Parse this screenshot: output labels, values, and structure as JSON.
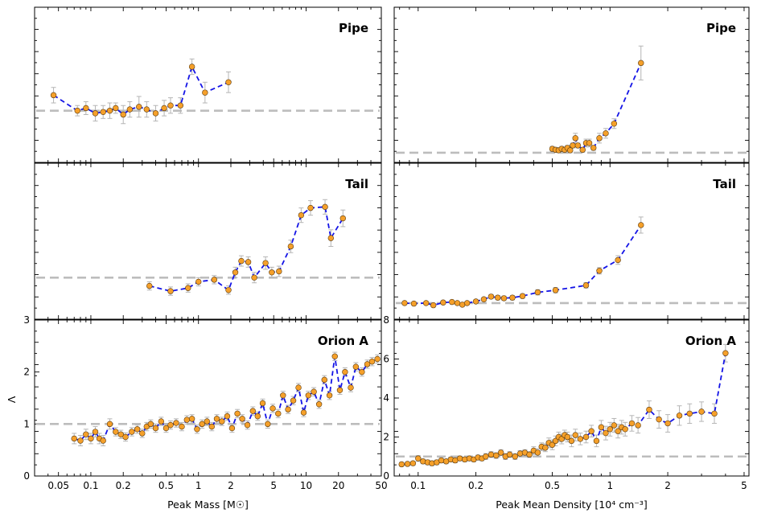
{
  "chart_data": {
    "type": "line",
    "y_label": "Λ",
    "reference_value": 1,
    "columns": [
      {
        "xlabel": "Peak Mass [M☉]",
        "x_scale": "log",
        "xlim": [
          0.03,
          50
        ],
        "x_ticks": [
          0.05,
          0.1,
          0.2,
          0.5,
          1,
          2,
          5,
          10,
          20,
          50
        ],
        "x_tick_labels": [
          "0.05",
          "0.1",
          "0.2",
          "0.5",
          "1",
          "2",
          "5",
          "10",
          "20",
          "50"
        ],
        "bottom_ylim": [
          0,
          3
        ],
        "bottom_y_ticks": [
          0,
          1,
          2,
          3
        ],
        "bottom_y_tick_labels": [
          "0",
          "1",
          "2",
          "3"
        ]
      },
      {
        "xlabel": "Peak Mean Density [10⁴ cm⁻³]",
        "x_scale": "log",
        "xlim": [
          0.075,
          5.3
        ],
        "x_ticks": [
          0.1,
          0.2,
          0.5,
          1,
          2,
          5
        ],
        "x_tick_labels": [
          "0.1",
          "0.2",
          "0.5",
          "1",
          "2",
          "5"
        ],
        "bottom_ylim": [
          0,
          8
        ],
        "bottom_y_ticks": [
          0,
          2,
          4,
          6,
          8
        ],
        "bottom_y_tick_labels": [
          "0",
          "2",
          "4",
          "6",
          "8"
        ]
      }
    ],
    "panels": [
      {
        "title": "Pipe",
        "row": 0,
        "col": 0,
        "ylim": [
          0.8,
          1.4
        ],
        "x": [
          0.045,
          0.075,
          0.09,
          0.11,
          0.13,
          0.15,
          0.17,
          0.2,
          0.23,
          0.28,
          0.33,
          0.4,
          0.48,
          0.55,
          0.68,
          0.87,
          1.15,
          1.9
        ],
        "y": [
          1.06,
          1.0,
          1.01,
          0.99,
          0.995,
          1.0,
          1.01,
          0.985,
          1.005,
          1.015,
          1.005,
          0.99,
          1.01,
          1.02,
          1.02,
          1.17,
          1.07,
          1.11
        ],
        "err": [
          0.03,
          0.02,
          0.025,
          0.03,
          0.025,
          0.03,
          0.02,
          0.035,
          0.03,
          0.04,
          0.03,
          0.03,
          0.03,
          0.03,
          0.03,
          0.03,
          0.04,
          0.04
        ]
      },
      {
        "title": "Pipe",
        "row": 0,
        "col": 1,
        "ylim": [
          0.8,
          4.0
        ],
        "x": [
          0.5,
          0.52,
          0.54,
          0.56,
          0.58,
          0.6,
          0.62,
          0.64,
          0.66,
          0.68,
          0.72,
          0.75,
          0.78,
          0.82,
          0.88,
          0.95,
          1.05,
          1.45
        ],
        "y": [
          1.08,
          1.06,
          1.05,
          1.08,
          1.06,
          1.1,
          1.05,
          1.15,
          1.3,
          1.15,
          1.06,
          1.2,
          1.2,
          1.1,
          1.3,
          1.4,
          1.6,
          2.85
        ],
        "err": [
          0.05,
          0.05,
          0.05,
          0.05,
          0.05,
          0.05,
          0.05,
          0.05,
          0.1,
          0.05,
          0.05,
          0.08,
          0.08,
          0.05,
          0.1,
          0.1,
          0.1,
          0.35
        ]
      },
      {
        "title": "Tail",
        "row": 1,
        "col": 0,
        "ylim": [
          0.6,
          2.1
        ],
        "x": [
          0.35,
          0.55,
          0.8,
          1.0,
          1.4,
          1.9,
          2.2,
          2.5,
          2.9,
          3.3,
          4.2,
          4.8,
          5.6,
          7.2,
          9.0,
          11,
          15,
          17,
          22
        ],
        "y": [
          0.92,
          0.87,
          0.9,
          0.96,
          0.98,
          0.88,
          1.05,
          1.16,
          1.15,
          1.0,
          1.14,
          1.05,
          1.06,
          1.3,
          1.6,
          1.67,
          1.68,
          1.38,
          1.57
        ],
        "err": [
          0.04,
          0.04,
          0.04,
          0.04,
          0.04,
          0.04,
          0.05,
          0.05,
          0.05,
          0.05,
          0.06,
          0.05,
          0.05,
          0.06,
          0.07,
          0.07,
          0.07,
          0.08,
          0.08
        ]
      },
      {
        "title": "Tail",
        "row": 1,
        "col": 1,
        "ylim": [
          0.7,
          3.6
        ],
        "x": [
          0.085,
          0.095,
          0.11,
          0.12,
          0.135,
          0.15,
          0.16,
          0.17,
          0.18,
          0.2,
          0.22,
          0.24,
          0.26,
          0.28,
          0.31,
          0.35,
          0.42,
          0.52,
          0.75,
          0.88,
          1.1,
          1.45
        ],
        "y": [
          1.0,
          0.99,
          1.0,
          0.96,
          1.01,
          1.02,
          1.0,
          0.97,
          1.0,
          1.03,
          1.07,
          1.12,
          1.1,
          1.09,
          1.1,
          1.13,
          1.2,
          1.24,
          1.33,
          1.6,
          1.8,
          2.45
        ],
        "err": [
          0.03,
          0.03,
          0.03,
          0.03,
          0.03,
          0.03,
          0.03,
          0.03,
          0.03,
          0.03,
          0.03,
          0.04,
          0.04,
          0.04,
          0.04,
          0.04,
          0.05,
          0.05,
          0.05,
          0.06,
          0.08,
          0.15
        ]
      },
      {
        "title": "Orion A",
        "row": 2,
        "col": 0,
        "ylim": [
          0,
          3
        ],
        "x": [
          0.07,
          0.08,
          0.09,
          0.1,
          0.11,
          0.12,
          0.13,
          0.15,
          0.17,
          0.19,
          0.21,
          0.24,
          0.27,
          0.3,
          0.33,
          0.36,
          0.4,
          0.45,
          0.5,
          0.55,
          0.62,
          0.7,
          0.78,
          0.87,
          0.97,
          1.08,
          1.2,
          1.33,
          1.48,
          1.65,
          1.85,
          2.05,
          2.3,
          2.55,
          2.85,
          3.2,
          3.55,
          3.95,
          4.4,
          4.9,
          5.5,
          6.1,
          6.8,
          7.6,
          8.5,
          9.5,
          10.5,
          11.8,
          13.2,
          14.8,
          16.5,
          18.5,
          20.6,
          23,
          26,
          29,
          33,
          37,
          41,
          46
        ],
        "y": [
          0.72,
          0.68,
          0.8,
          0.72,
          0.85,
          0.72,
          0.68,
          1.0,
          0.85,
          0.8,
          0.75,
          0.85,
          0.9,
          0.82,
          0.95,
          1.0,
          0.92,
          1.05,
          0.92,
          0.98,
          1.02,
          0.95,
          1.08,
          1.1,
          0.9,
          1.0,
          1.05,
          0.95,
          1.1,
          1.05,
          1.15,
          0.92,
          1.2,
          1.1,
          0.98,
          1.25,
          1.15,
          1.4,
          1.0,
          1.3,
          1.2,
          1.55,
          1.28,
          1.45,
          1.7,
          1.22,
          1.55,
          1.62,
          1.38,
          1.85,
          1.55,
          2.3,
          1.65,
          2.0,
          1.7,
          2.1,
          2.0,
          2.15,
          2.2,
          2.25
        ],
        "err": [
          0.1,
          0.1,
          0.1,
          0.1,
          0.1,
          0.1,
          0.1,
          0.1,
          0.08,
          0.08,
          0.08,
          0.08,
          0.08,
          0.08,
          0.08,
          0.08,
          0.08,
          0.08,
          0.08,
          0.08,
          0.08,
          0.08,
          0.08,
          0.08,
          0.08,
          0.08,
          0.08,
          0.08,
          0.08,
          0.08,
          0.08,
          0.08,
          0.08,
          0.08,
          0.08,
          0.08,
          0.08,
          0.08,
          0.08,
          0.08,
          0.08,
          0.08,
          0.08,
          0.08,
          0.08,
          0.08,
          0.08,
          0.08,
          0.08,
          0.08,
          0.08,
          0.08,
          0.08,
          0.08,
          0.08,
          0.08,
          0.08,
          0.08,
          0.08,
          0.08
        ]
      },
      {
        "title": "Orion A",
        "row": 2,
        "col": 1,
        "ylim": [
          0,
          8
        ],
        "x": [
          0.082,
          0.088,
          0.094,
          0.1,
          0.106,
          0.112,
          0.118,
          0.125,
          0.132,
          0.14,
          0.148,
          0.156,
          0.165,
          0.175,
          0.185,
          0.195,
          0.205,
          0.215,
          0.225,
          0.24,
          0.255,
          0.27,
          0.285,
          0.3,
          0.32,
          0.34,
          0.36,
          0.38,
          0.4,
          0.42,
          0.44,
          0.46,
          0.48,
          0.5,
          0.52,
          0.54,
          0.56,
          0.58,
          0.6,
          0.63,
          0.66,
          0.7,
          0.75,
          0.8,
          0.85,
          0.9,
          0.95,
          1.0,
          1.05,
          1.1,
          1.15,
          1.2,
          1.3,
          1.4,
          1.6,
          1.8,
          2.0,
          2.3,
          2.6,
          3.0,
          3.5,
          4.0
        ],
        "y": [
          0.6,
          0.62,
          0.65,
          0.9,
          0.75,
          0.7,
          0.65,
          0.7,
          0.8,
          0.75,
          0.85,
          0.8,
          0.9,
          0.85,
          0.9,
          0.85,
          0.95,
          0.9,
          1.0,
          1.1,
          1.05,
          1.2,
          1.0,
          1.1,
          1.0,
          1.15,
          1.2,
          1.1,
          1.3,
          1.2,
          1.5,
          1.45,
          1.7,
          1.6,
          1.8,
          2.0,
          1.9,
          2.1,
          2.0,
          1.8,
          2.1,
          1.9,
          2.0,
          2.3,
          1.8,
          2.5,
          2.2,
          2.4,
          2.6,
          2.3,
          2.5,
          2.4,
          2.7,
          2.6,
          3.4,
          2.9,
          2.7,
          3.1,
          3.2,
          3.3,
          3.2,
          6.3
        ],
        "err": [
          0.1,
          0.1,
          0.1,
          0.15,
          0.12,
          0.12,
          0.12,
          0.12,
          0.12,
          0.12,
          0.12,
          0.12,
          0.12,
          0.12,
          0.12,
          0.12,
          0.12,
          0.12,
          0.15,
          0.15,
          0.15,
          0.15,
          0.15,
          0.15,
          0.15,
          0.15,
          0.15,
          0.15,
          0.2,
          0.2,
          0.2,
          0.2,
          0.25,
          0.25,
          0.25,
          0.25,
          0.25,
          0.25,
          0.25,
          0.3,
          0.3,
          0.3,
          0.3,
          0.3,
          0.3,
          0.35,
          0.35,
          0.35,
          0.35,
          0.35,
          0.35,
          0.35,
          0.4,
          0.4,
          0.45,
          0.45,
          0.45,
          0.5,
          0.5,
          0.5,
          0.5,
          0.45
        ]
      }
    ]
  }
}
